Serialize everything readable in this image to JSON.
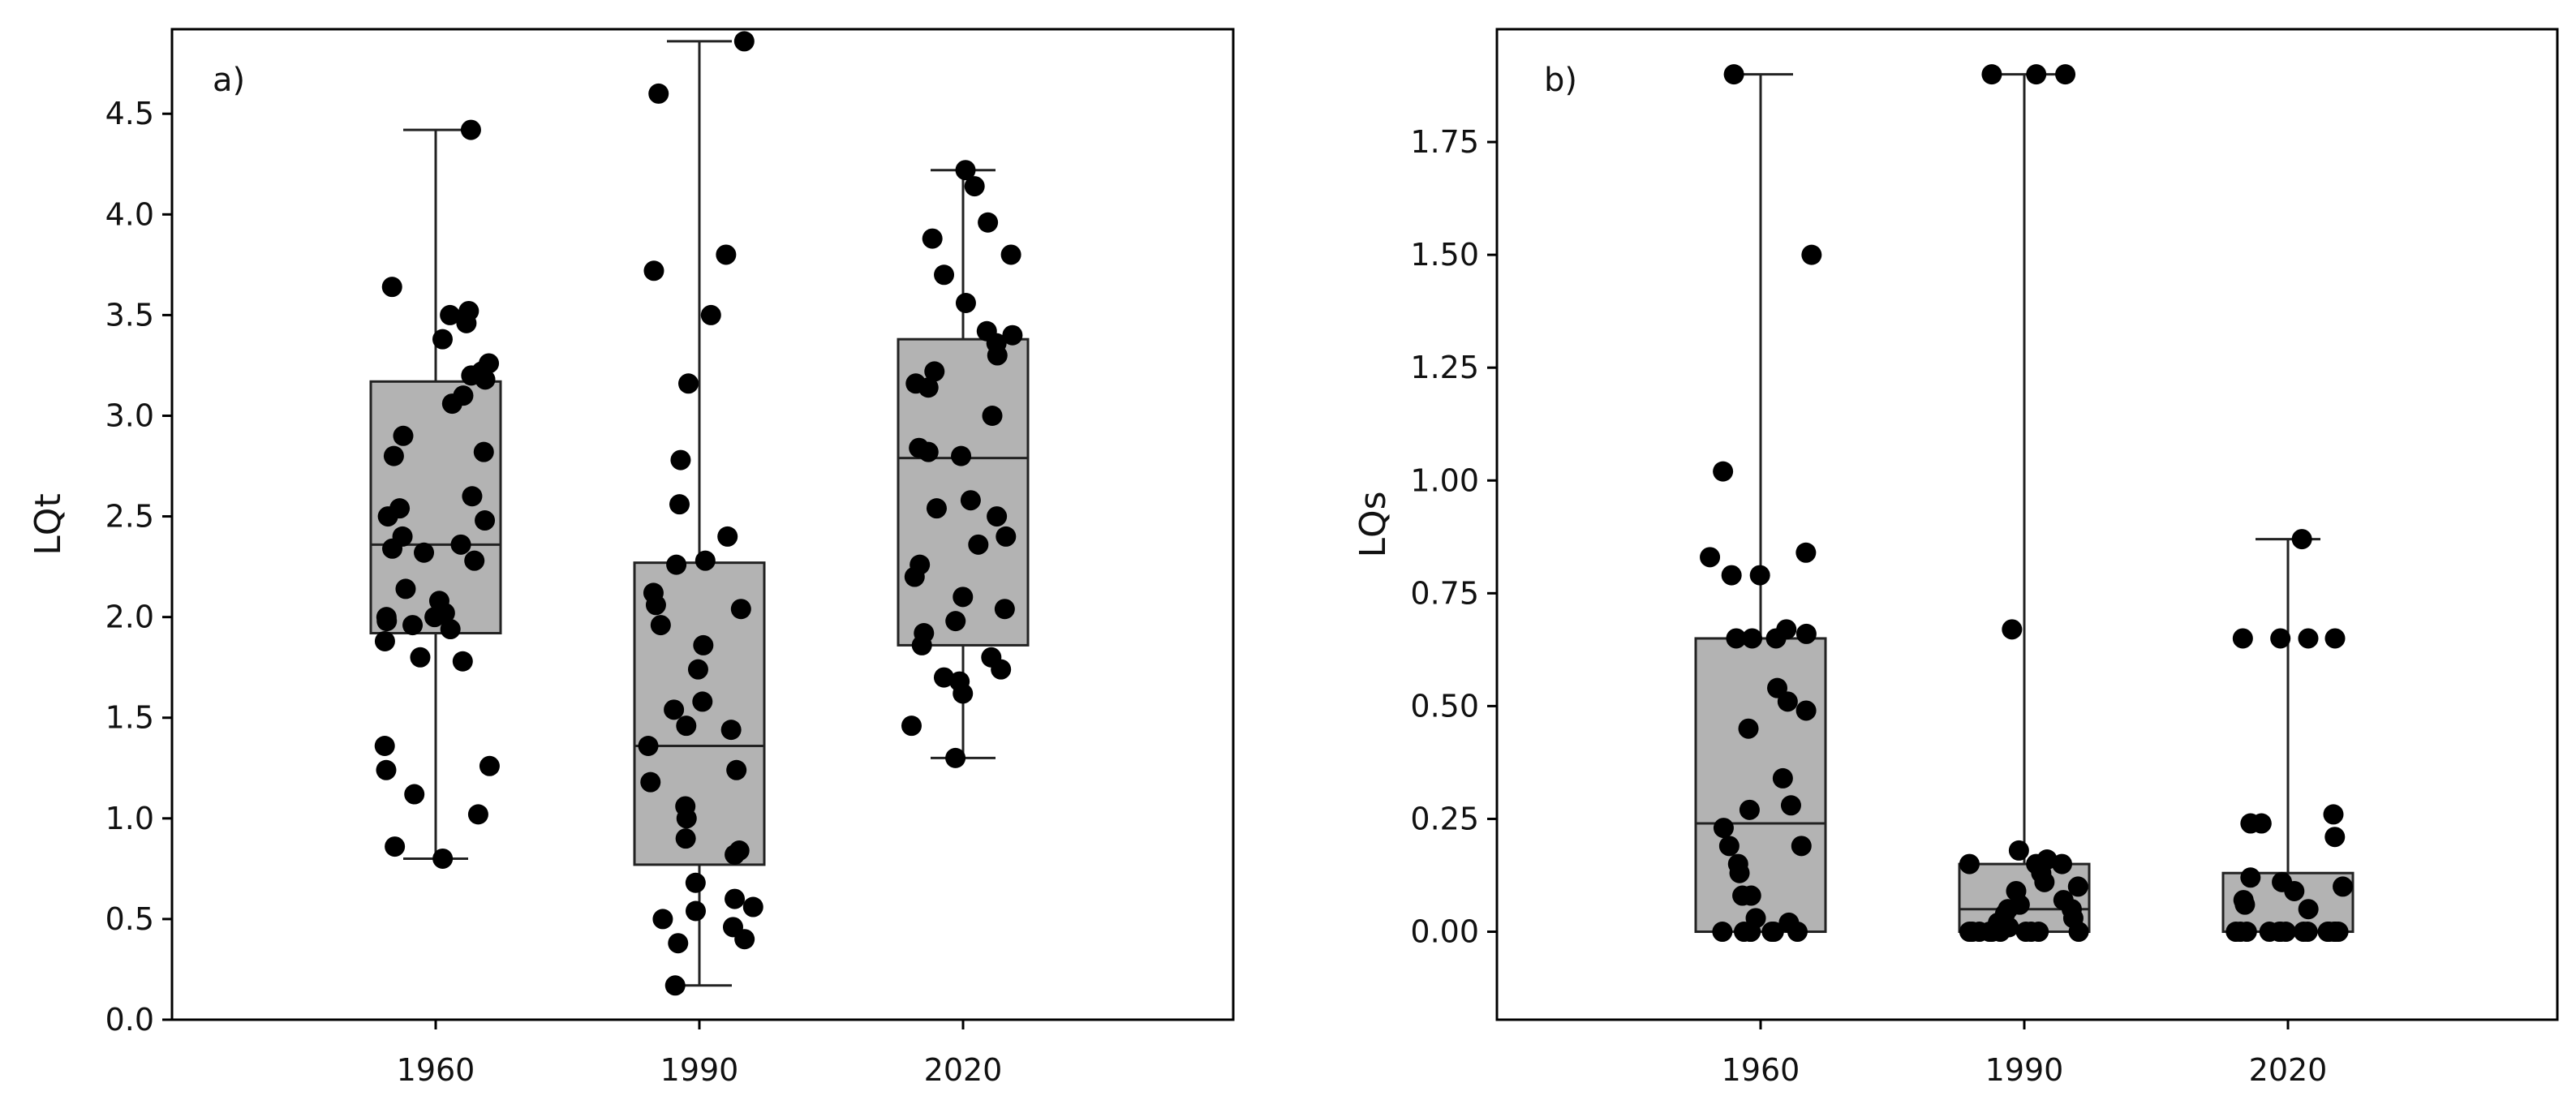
{
  "chart_data": [
    {
      "type": "box",
      "panel_label": "a)",
      "ylabel": "LQt",
      "xlabel": "",
      "categories": [
        "1960",
        "1990",
        "2020"
      ],
      "yticks": [
        "0.0",
        "0.5",
        "1.0",
        "1.5",
        "2.0",
        "2.5",
        "3.0",
        "3.5",
        "4.0",
        "4.5"
      ],
      "ylim": [
        0,
        4.92
      ],
      "grid": false,
      "colors": {
        "box_fill": "#b3b3b3",
        "stroke": "#222222",
        "points": "#000000"
      },
      "boxes": [
        {
          "category": "1960",
          "min": 0.8,
          "q1": 1.92,
          "median": 2.36,
          "q3": 3.17,
          "max": 4.42
        },
        {
          "category": "1990",
          "min": 0.17,
          "q1": 0.77,
          "median": 1.36,
          "q3": 2.27,
          "max": 4.86
        },
        {
          "category": "2020",
          "min": 1.3,
          "q1": 1.86,
          "median": 2.79,
          "q3": 3.38,
          "max": 4.22
        }
      ],
      "points": [
        {
          "category": "1960",
          "values": [
            4.42,
            3.64,
            3.52,
            3.5,
            3.46,
            3.38,
            3.26,
            3.22,
            3.2,
            3.18,
            3.1,
            3.06,
            2.9,
            2.82,
            2.8,
            2.6,
            2.54,
            2.5,
            2.48,
            2.4,
            2.36,
            2.34,
            2.32,
            2.28,
            2.14,
            2.08,
            2.02,
            2.0,
            2.0,
            1.98,
            1.96,
            1.94,
            1.88,
            1.8,
            1.78,
            1.36,
            1.26,
            1.24,
            1.12,
            1.02,
            0.86,
            0.8
          ]
        },
        {
          "category": "1990",
          "values": [
            4.86,
            4.6,
            3.8,
            3.72,
            3.5,
            3.16,
            2.78,
            2.56,
            2.4,
            2.28,
            2.26,
            2.12,
            2.06,
            2.04,
            1.96,
            1.86,
            1.74,
            1.58,
            1.54,
            1.46,
            1.44,
            1.36,
            1.24,
            1.18,
            1.06,
            1.0,
            0.9,
            0.84,
            0.82,
            0.68,
            0.6,
            0.56,
            0.54,
            0.5,
            0.46,
            0.4,
            0.38,
            0.17
          ]
        },
        {
          "category": "2020",
          "values": [
            4.22,
            4.14,
            3.96,
            3.88,
            3.8,
            3.7,
            3.56,
            3.42,
            3.4,
            3.36,
            3.3,
            3.22,
            3.16,
            3.14,
            3.0,
            2.84,
            2.82,
            2.8,
            2.58,
            2.54,
            2.5,
            2.4,
            2.36,
            2.26,
            2.2,
            2.1,
            2.04,
            1.98,
            1.92,
            1.86,
            1.8,
            1.74,
            1.7,
            1.68,
            1.62,
            1.46,
            1.3
          ]
        }
      ]
    },
    {
      "type": "box",
      "panel_label": "b)",
      "ylabel": "LQs",
      "xlabel": "",
      "categories": [
        "1960",
        "1990",
        "2020"
      ],
      "yticks": [
        "0.00",
        "0.25",
        "0.50",
        "0.75",
        "1.00",
        "1.25",
        "1.50",
        "1.75"
      ],
      "ylim": [
        -0.195,
        2.0
      ],
      "grid": false,
      "colors": {
        "box_fill": "#b3b3b3",
        "stroke": "#222222",
        "points": "#000000"
      },
      "boxes": [
        {
          "category": "1960",
          "min": 0.0,
          "q1": 0.0,
          "median": 0.24,
          "q3": 0.65,
          "max": 1.9
        },
        {
          "category": "1990",
          "min": 0.0,
          "q1": 0.0,
          "median": 0.05,
          "q3": 0.15,
          "max": 1.9
        },
        {
          "category": "2020",
          "min": 0.0,
          "q1": 0.0,
          "median": 0.0,
          "q3": 0.13,
          "max": 0.87
        }
      ],
      "points": [
        {
          "category": "1960",
          "values": [
            1.9,
            1.5,
            1.02,
            0.84,
            0.83,
            0.79,
            0.79,
            0.67,
            0.66,
            0.65,
            0.65,
            0.65,
            0.54,
            0.51,
            0.49,
            0.45,
            0.34,
            0.28,
            0.27,
            0.23,
            0.19,
            0.19,
            0.15,
            0.13,
            0.08,
            0.08,
            0.03,
            0.02,
            0.0,
            0.0,
            0.0,
            0.0,
            0.0,
            0.0,
            0.0
          ]
        },
        {
          "category": "1990",
          "values": [
            1.9,
            1.9,
            1.9,
            0.67,
            0.18,
            0.16,
            0.15,
            0.15,
            0.15,
            0.13,
            0.11,
            0.1,
            0.09,
            0.07,
            0.06,
            0.05,
            0.05,
            0.04,
            0.03,
            0.02,
            0.01,
            0.0,
            0.0,
            0.0,
            0.0,
            0.0,
            0.0,
            0.0,
            0.0,
            0.0,
            0.0
          ]
        },
        {
          "category": "2020",
          "values": [
            0.87,
            0.65,
            0.65,
            0.65,
            0.65,
            0.26,
            0.24,
            0.24,
            0.21,
            0.12,
            0.11,
            0.1,
            0.09,
            0.07,
            0.06,
            0.05,
            0.0,
            0.0,
            0.0,
            0.0,
            0.0,
            0.0,
            0.0,
            0.0,
            0.0,
            0.0,
            0.0,
            0.0,
            0.0,
            0.0
          ]
        }
      ]
    }
  ]
}
